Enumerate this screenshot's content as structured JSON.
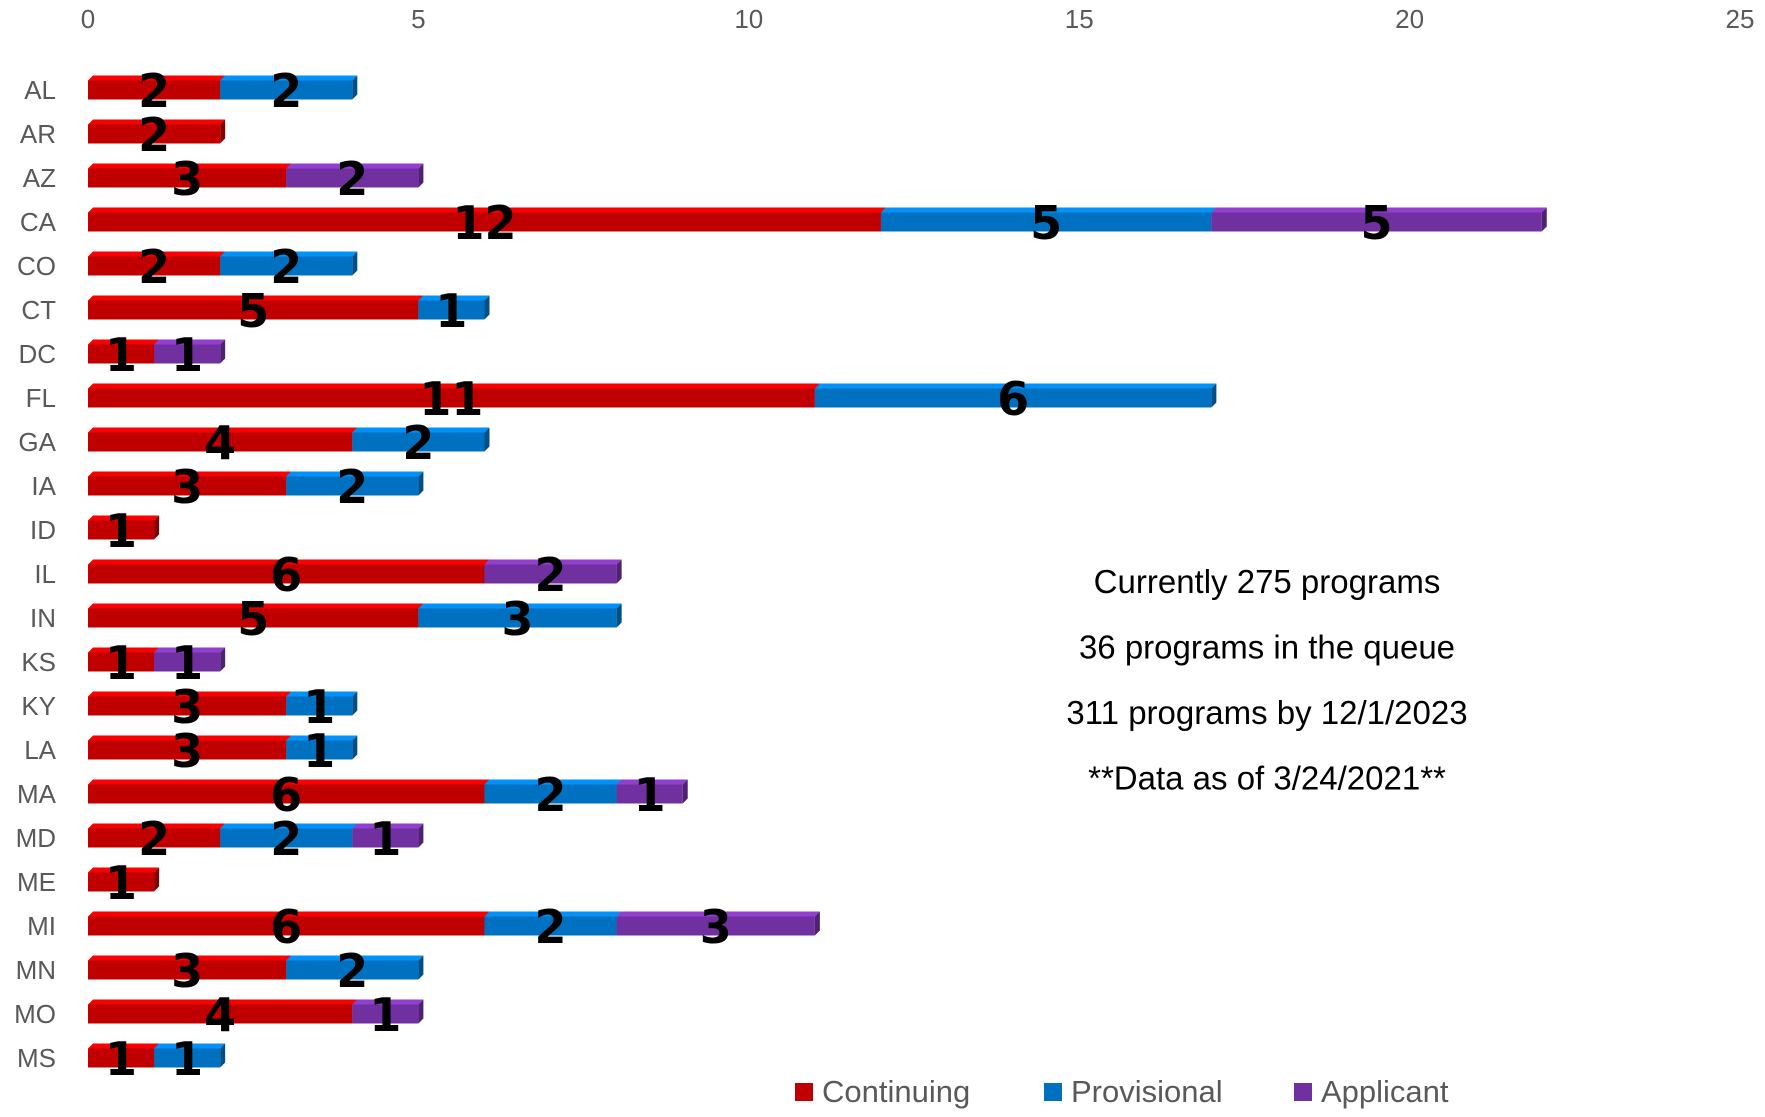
{
  "chart_data": {
    "type": "bar",
    "orientation": "horizontal",
    "stacked": true,
    "categories": [
      "AL",
      "AR",
      "AZ",
      "CA",
      "CO",
      "CT",
      "DC",
      "FL",
      "GA",
      "IA",
      "ID",
      "IL",
      "IN",
      "KS",
      "KY",
      "LA",
      "MA",
      "MD",
      "ME",
      "MI",
      "MN",
      "MO",
      "MS"
    ],
    "series": [
      {
        "name": "Continuing",
        "color": "#C00000",
        "values": [
          2,
          2,
          3,
          12,
          2,
          5,
          1,
          11,
          4,
          3,
          1,
          6,
          5,
          1,
          3,
          3,
          6,
          2,
          1,
          6,
          3,
          4,
          1
        ]
      },
      {
        "name": "Provisional",
        "color": "#0070C0",
        "values": [
          2,
          0,
          0,
          5,
          2,
          1,
          0,
          6,
          2,
          2,
          0,
          0,
          3,
          0,
          1,
          1,
          2,
          2,
          0,
          2,
          2,
          0,
          1
        ]
      },
      {
        "name": "Applicant",
        "color": "#7030A0",
        "values": [
          0,
          0,
          2,
          5,
          0,
          0,
          1,
          0,
          0,
          0,
          0,
          2,
          0,
          1,
          0,
          0,
          1,
          1,
          0,
          3,
          0,
          1,
          0
        ]
      }
    ],
    "xlim": [
      0,
      25
    ],
    "x_ticks": [
      0,
      5,
      10,
      15,
      20,
      25
    ],
    "x_axis_position": "top",
    "grid": false,
    "legend_position": "bottom",
    "data_labels": true,
    "annotations": [
      "Currently  275 programs",
      "36 programs in the queue",
      "311 programs by 12/1/2023",
      "**Data as of 3/24/2021**"
    ]
  }
}
